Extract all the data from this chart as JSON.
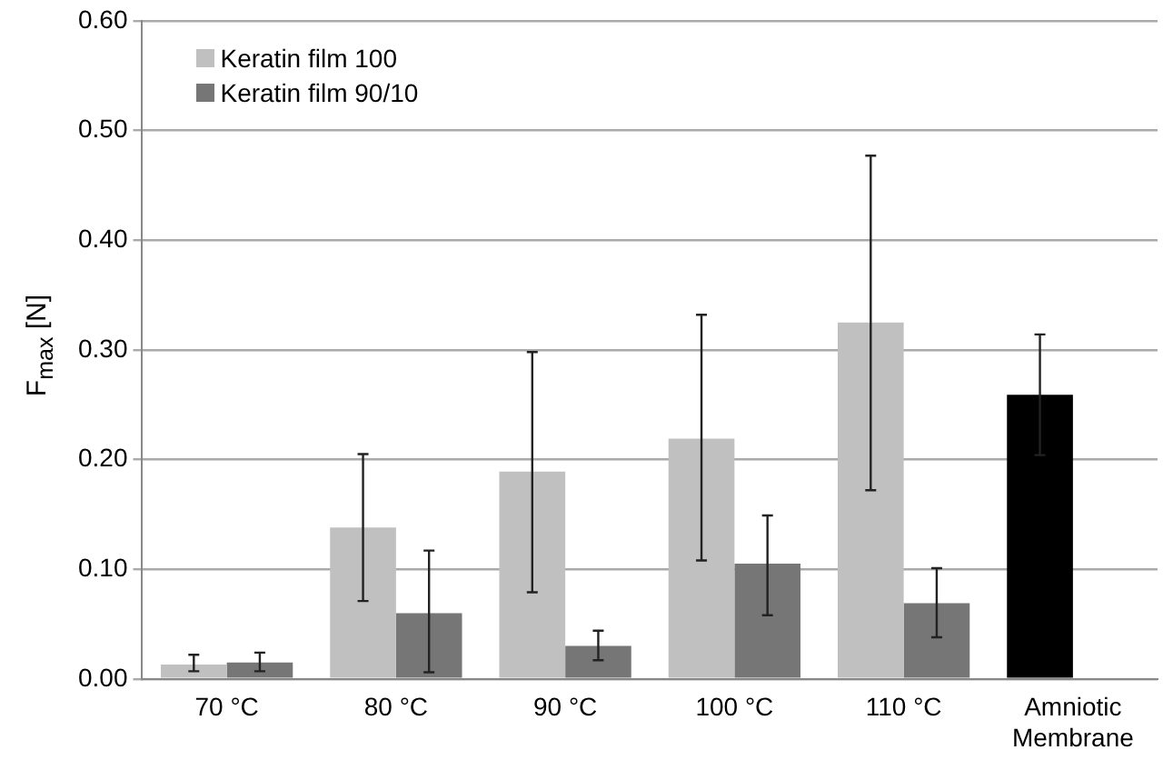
{
  "chart_data": {
    "type": "bar",
    "ylabel": "F$_{max}$ [N]",
    "categories": [
      "70 °C",
      "80 °C",
      "90 °C",
      "100 °C",
      "110 °C",
      "Amniotic Membrane"
    ],
    "series": [
      {
        "name": "Keratin film 100",
        "color": "#c0c0c0",
        "colors": [
          "#c0c0c0",
          "#c0c0c0",
          "#c0c0c0",
          "#c0c0c0",
          "#c0c0c0",
          "#000000"
        ],
        "values": [
          0.013,
          0.138,
          0.189,
          0.219,
          0.325,
          0.259
        ],
        "errors": [
          [
            0.007,
            0.022
          ],
          [
            0.071,
            0.205
          ],
          [
            0.079,
            0.298
          ],
          [
            0.108,
            0.332
          ],
          [
            0.172,
            0.477
          ],
          [
            0.204,
            0.314
          ]
        ]
      },
      {
        "name": "Keratin film 90/10",
        "color": "#767676",
        "values": [
          0.015,
          0.06,
          0.03,
          0.105,
          0.069,
          null
        ],
        "errors": [
          [
            0.007,
            0.024
          ],
          [
            0.006,
            0.117
          ],
          [
            0.017,
            0.044
          ],
          [
            0.058,
            0.149
          ],
          [
            0.038,
            0.101
          ],
          null
        ]
      }
    ],
    "ylim": [
      0,
      0.6
    ],
    "yticks": [
      {
        "value": 0,
        "label": "0.00"
      },
      {
        "value": 0.1,
        "label": "0.10"
      },
      {
        "value": 0.2,
        "label": "0.20"
      },
      {
        "value": 0.3,
        "label": "0.30"
      },
      {
        "value": 0.4,
        "label": "0.40"
      },
      {
        "value": 0.5,
        "label": "0.50"
      },
      {
        "value": 0.6,
        "label": "0.60"
      }
    ],
    "grid": "y",
    "legend": "top left"
  }
}
